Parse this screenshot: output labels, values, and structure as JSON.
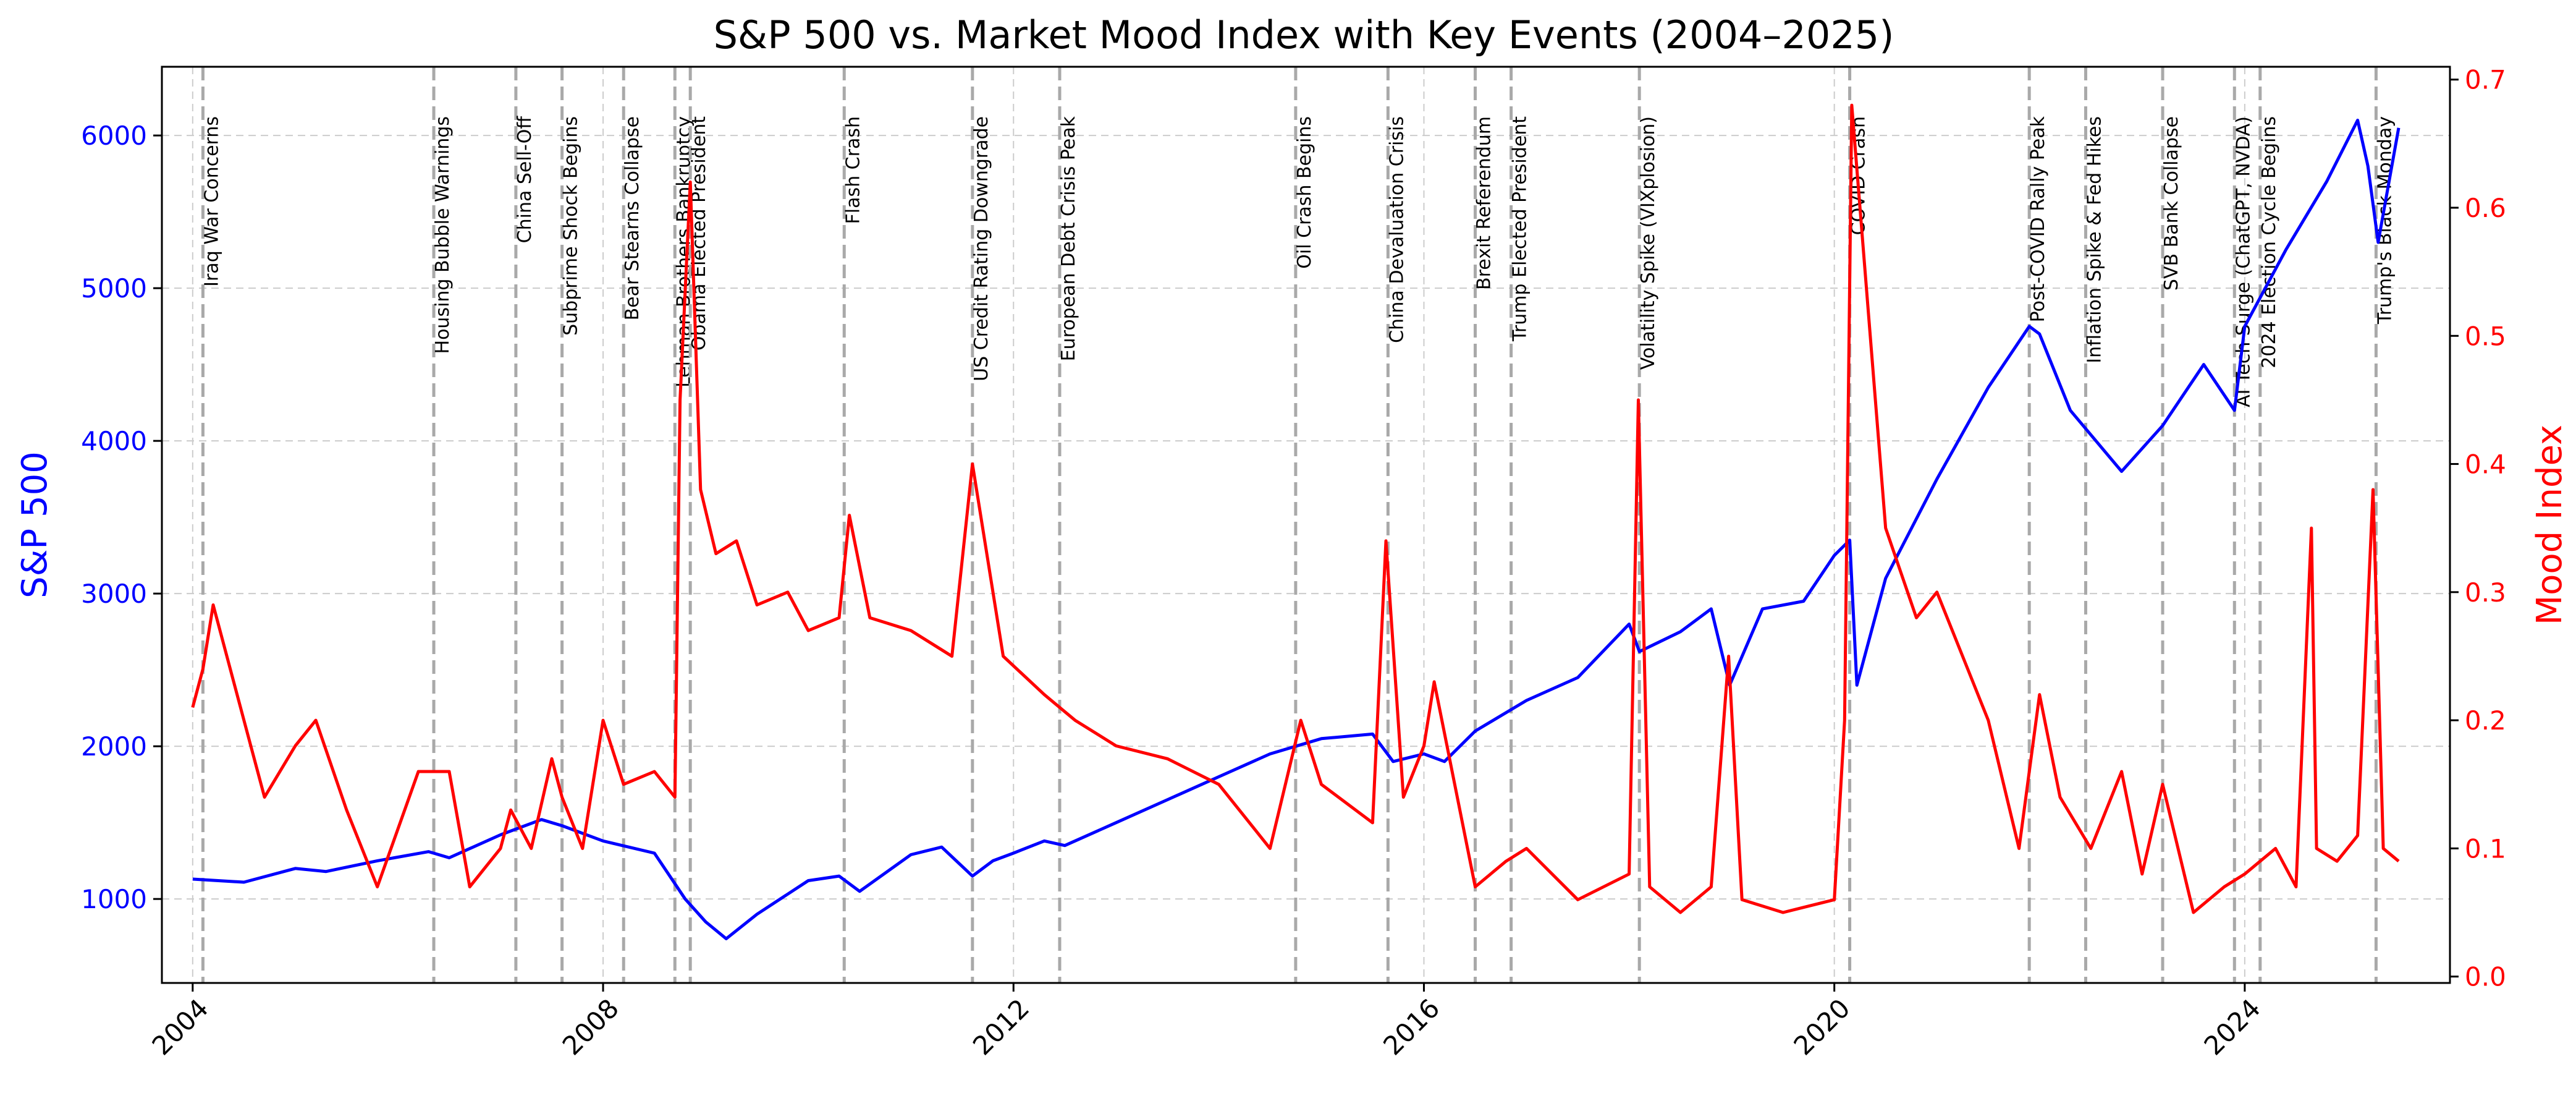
{
  "chart_data": {
    "type": "line",
    "title": "S&P 500 vs. Market Mood Index with Key Events (2004–2025)",
    "xlabel": "",
    "x_ticks": [
      "2004",
      "2008",
      "2012",
      "2016",
      "2020",
      "2024"
    ],
    "xlim": [
      2003.7,
      2026.0
    ],
    "grid": true,
    "y_left": {
      "label": "S&P 500",
      "color": "#0000ff",
      "ylim": [
        450,
        6450
      ],
      "ticks": [
        "1000",
        "2000",
        "3000",
        "4000",
        "5000",
        "6000"
      ]
    },
    "y_right": {
      "label": "Mood Index",
      "color": "#ff0000",
      "ylim": [
        -0.005,
        0.71
      ],
      "ticks": [
        "0.0",
        "0.1",
        "0.2",
        "0.3",
        "0.4",
        "0.5",
        "0.6",
        "0.7"
      ]
    },
    "series": [
      {
        "axis": "left",
        "color": "#0000ff",
        "x": [
          2004.0,
          2004.5,
          2005.0,
          2005.3,
          2005.8,
          2006.3,
          2006.5,
          2007.0,
          2007.4,
          2007.6,
          2008.0,
          2008.5,
          2008.8,
          2009.0,
          2009.2,
          2009.5,
          2010.0,
          2010.3,
          2010.5,
          2011.0,
          2011.3,
          2011.6,
          2011.8,
          2012.0,
          2012.3,
          2012.5,
          2013.0,
          2013.5,
          2014.0,
          2014.5,
          2015.0,
          2015.5,
          2015.7,
          2016.0,
          2016.2,
          2016.5,
          2017.0,
          2017.5,
          2018.0,
          2018.1,
          2018.5,
          2018.8,
          2018.98,
          2019.3,
          2019.7,
          2020.0,
          2020.15,
          2020.22,
          2020.5,
          2021.0,
          2021.5,
          2021.9,
          2022.0,
          2022.3,
          2022.8,
          2023.0,
          2023.2,
          2023.6,
          2023.9,
          2024.0,
          2024.4,
          2024.8,
          2025.1,
          2025.2,
          2025.3,
          2025.5
        ],
        "y": [
          1130,
          1110,
          1200,
          1180,
          1250,
          1310,
          1270,
          1420,
          1520,
          1480,
          1380,
          1300,
          1000,
          850,
          740,
          900,
          1120,
          1150,
          1050,
          1290,
          1340,
          1150,
          1250,
          1300,
          1380,
          1350,
          1500,
          1650,
          1800,
          1950,
          2050,
          2080,
          1900,
          1950,
          1900,
          2100,
          2300,
          2450,
          2800,
          2620,
          2750,
          2900,
          2400,
          2900,
          2950,
          3250,
          3350,
          2400,
          3100,
          3750,
          4350,
          4750,
          4700,
          4200,
          3800,
          3950,
          4100,
          4500,
          4200,
          4750,
          5250,
          5700,
          6100,
          5800,
          5300,
          6050
        ]
      },
      {
        "axis": "right",
        "color": "#ff0000",
        "x": [
          2004.0,
          2004.1,
          2004.2,
          2004.5,
          2004.7,
          2005.0,
          2005.2,
          2005.5,
          2005.8,
          2006.2,
          2006.5,
          2006.7,
          2007.0,
          2007.1,
          2007.3,
          2007.5,
          2007.6,
          2007.8,
          2008.0,
          2008.2,
          2008.5,
          2008.7,
          2008.75,
          2008.85,
          2008.95,
          2009.1,
          2009.3,
          2009.5,
          2009.8,
          2010.0,
          2010.3,
          2010.4,
          2010.6,
          2011.0,
          2011.4,
          2011.6,
          2011.7,
          2011.9,
          2012.3,
          2012.6,
          2013.0,
          2013.5,
          2014.0,
          2014.5,
          2014.8,
          2015.0,
          2015.5,
          2015.63,
          2015.8,
          2016.0,
          2016.1,
          2016.5,
          2016.8,
          2017.0,
          2017.5,
          2018.0,
          2018.09,
          2018.2,
          2018.5,
          2018.8,
          2018.97,
          2019.1,
          2019.5,
          2020.0,
          2020.1,
          2020.17,
          2020.3,
          2020.5,
          2020.8,
          2021.0,
          2021.5,
          2021.8,
          2022.0,
          2022.2,
          2022.5,
          2022.8,
          2023.0,
          2023.2,
          2023.5,
          2023.8,
          2024.0,
          2024.3,
          2024.5,
          2024.65,
          2024.7,
          2024.9,
          2025.1,
          2025.25,
          2025.35,
          2025.5
        ],
        "y": [
          0.21,
          0.24,
          0.29,
          0.2,
          0.14,
          0.18,
          0.2,
          0.13,
          0.07,
          0.16,
          0.16,
          0.07,
          0.1,
          0.13,
          0.1,
          0.17,
          0.14,
          0.1,
          0.2,
          0.15,
          0.16,
          0.14,
          0.45,
          0.62,
          0.38,
          0.33,
          0.34,
          0.29,
          0.3,
          0.27,
          0.28,
          0.36,
          0.28,
          0.27,
          0.25,
          0.4,
          0.35,
          0.25,
          0.22,
          0.2,
          0.18,
          0.17,
          0.15,
          0.1,
          0.2,
          0.15,
          0.12,
          0.34,
          0.14,
          0.18,
          0.23,
          0.07,
          0.09,
          0.1,
          0.06,
          0.08,
          0.45,
          0.07,
          0.05,
          0.07,
          0.25,
          0.06,
          0.05,
          0.06,
          0.2,
          0.68,
          0.55,
          0.35,
          0.28,
          0.3,
          0.2,
          0.1,
          0.22,
          0.14,
          0.1,
          0.16,
          0.08,
          0.15,
          0.05,
          0.07,
          0.08,
          0.1,
          0.07,
          0.35,
          0.1,
          0.09,
          0.11,
          0.38,
          0.1,
          0.09
        ]
      }
    ],
    "events": [
      {
        "x": 2004.1,
        "label": "Iraq War Concerns"
      },
      {
        "x": 2006.35,
        "label": "Housing Bubble Warnings"
      },
      {
        "x": 2007.15,
        "label": "China Sell-Off"
      },
      {
        "x": 2007.6,
        "label": "Subprime Shock Begins"
      },
      {
        "x": 2008.2,
        "label": "Bear Stearns Collapse"
      },
      {
        "x": 2008.7,
        "label": "Lehman Brothers Bankruptcy"
      },
      {
        "x": 2008.85,
        "label": "Obama Elected President"
      },
      {
        "x": 2010.35,
        "label": "Flash Crash"
      },
      {
        "x": 2011.6,
        "label": "US Credit Rating Downgrade"
      },
      {
        "x": 2012.45,
        "label": "European Debt Crisis Peak"
      },
      {
        "x": 2014.75,
        "label": "Oil Crash Begins"
      },
      {
        "x": 2015.65,
        "label": "China Devaluation Crisis"
      },
      {
        "x": 2016.5,
        "label": "Brexit Referendum"
      },
      {
        "x": 2016.85,
        "label": "Trump Elected President"
      },
      {
        "x": 2018.1,
        "label": "Volatility Spike (VIXplosion)"
      },
      {
        "x": 2020.15,
        "label": "COVID Crash"
      },
      {
        "x": 2021.9,
        "label": "Post-COVID Rally Peak"
      },
      {
        "x": 2022.45,
        "label": "Inflation Spike & Fed Hikes"
      },
      {
        "x": 2023.2,
        "label": "SVB Bank Collapse"
      },
      {
        "x": 2023.9,
        "label": "AI Tech Surge (ChatGPT, NVDA)"
      },
      {
        "x": 2024.15,
        "label": "2024 Election Cycle Begins"
      },
      {
        "x": 2025.28,
        "label": "Trump's Black Monday"
      }
    ]
  }
}
